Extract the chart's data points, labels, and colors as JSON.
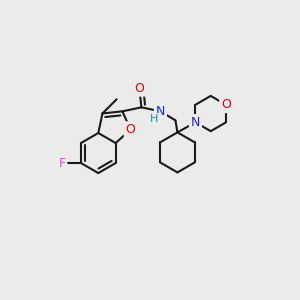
{
  "background_color": "#ebebeb",
  "bond_color": "#1a1a1a",
  "atom_colors": {
    "F": "#ee44ee",
    "O": "#dd0000",
    "N": "#2222dd",
    "H": "#009999",
    "C": "#1a1a1a"
  },
  "figsize": [
    3.0,
    3.0
  ],
  "dpi": 100
}
